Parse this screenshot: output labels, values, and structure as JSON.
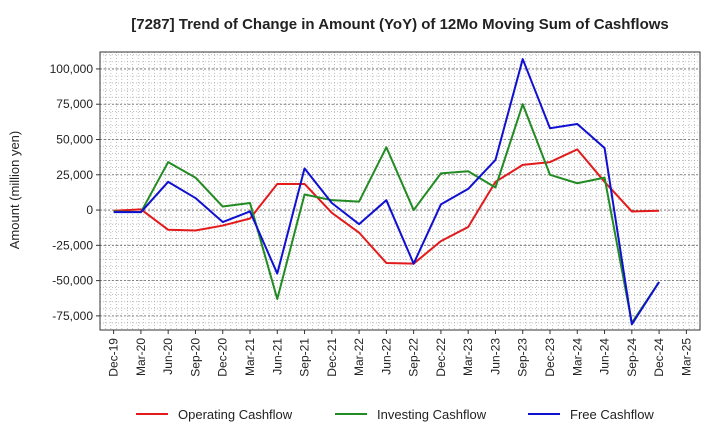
{
  "chart_data": {
    "type": "line",
    "title": "[7287]  Trend of Change in Amount (YoY) of 12Mo Moving Sum of Cashflows",
    "ylabel": "Amount (million yen)",
    "xlabel": "",
    "categories": [
      "Dec-19",
      "Mar-20",
      "Jun-20",
      "Sep-20",
      "Dec-20",
      "Mar-21",
      "Jun-21",
      "Sep-21",
      "Dec-21",
      "Mar-22",
      "Jun-22",
      "Sep-22",
      "Dec-22",
      "Mar-23",
      "Jun-23",
      "Sep-23",
      "Dec-23",
      "Mar-24",
      "Jun-24",
      "Sep-24",
      "Dec-24",
      "Mar-25"
    ],
    "ylim": [
      -85000,
      112000
    ],
    "yticks": [
      -75000,
      -50000,
      -25000,
      0,
      25000,
      50000,
      75000,
      100000
    ],
    "ytick_labels": [
      "-75,000",
      "-50,000",
      "-25,000",
      "0",
      "25,000",
      "50,000",
      "75,000",
      "100,000"
    ],
    "grid": true,
    "legend_position": "bottom",
    "series": [
      {
        "name": "Operating Cashflow",
        "color": "#e31a1c",
        "values": [
          -500,
          500,
          -14000,
          -14500,
          -11000,
          -6000,
          18500,
          18500,
          -2000,
          -16000,
          -37500,
          -38000,
          -22000,
          -12000,
          20000,
          32000,
          34000,
          43000,
          20000,
          -1000,
          -500,
          null
        ]
      },
      {
        "name": "Investing Cashflow",
        "color": "#238b23",
        "values": [
          -1000,
          -1500,
          34000,
          23000,
          2500,
          5000,
          -63000,
          11000,
          7000,
          6000,
          44500,
          0,
          26000,
          27500,
          16000,
          75000,
          25000,
          19000,
          23000,
          -80000,
          -51000,
          null
        ]
      },
      {
        "name": "Free Cashflow",
        "color": "#1010d0",
        "values": [
          -1500,
          -1500,
          20000,
          8500,
          -8500,
          -1000,
          -45000,
          29500,
          5000,
          -10000,
          7000,
          -38000,
          4000,
          15000,
          35500,
          107000,
          58000,
          61000,
          44000,
          -81000,
          -51000,
          null
        ]
      }
    ]
  }
}
